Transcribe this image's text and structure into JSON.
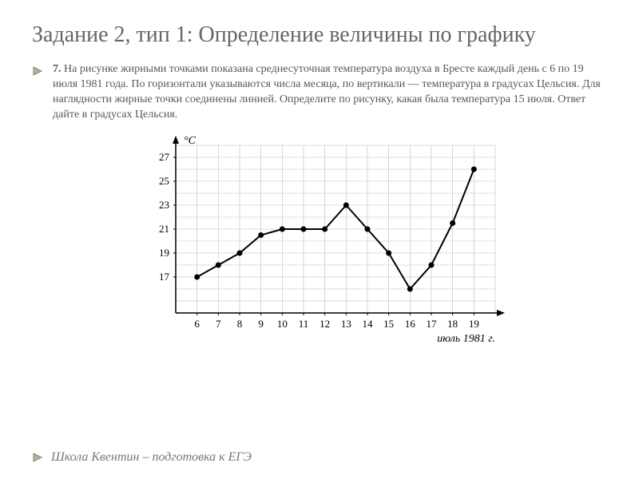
{
  "title": "Задание 2, тип 1: Определение величины по графику",
  "problem": {
    "number": "7.",
    "text": "На рисунке жирными точками показана среднесуточная температура воздуха в Бресте каждый день с 6 по 19 июля 1981 года. По горизонтали указываются числа месяца, по вертикали — температура в градусах Цельсия. Для наглядности жирные точки соединены линией. Определите по рисунку, какая была температура 15 июля. Ответ дайте в градусах Цельсия."
  },
  "chart": {
    "type": "line",
    "y_axis_label": "°C",
    "x_axis_caption": "июль 1981 г.",
    "x_values": [
      6,
      7,
      8,
      9,
      10,
      11,
      12,
      13,
      14,
      15,
      16,
      17,
      18,
      19
    ],
    "y_ticks": [
      17,
      19,
      21,
      23,
      25,
      27
    ],
    "data": [
      {
        "x": 6,
        "y": 17
      },
      {
        "x": 7,
        "y": 18
      },
      {
        "x": 8,
        "y": 19
      },
      {
        "x": 9,
        "y": 20.5
      },
      {
        "x": 10,
        "y": 21
      },
      {
        "x": 11,
        "y": 21
      },
      {
        "x": 12,
        "y": 21
      },
      {
        "x": 13,
        "y": 23
      },
      {
        "x": 14,
        "y": 21
      },
      {
        "x": 15,
        "y": 19
      },
      {
        "x": 16,
        "y": 16
      },
      {
        "x": 17,
        "y": 18
      },
      {
        "x": 18,
        "y": 21.5
      },
      {
        "x": 19,
        "y": 26
      }
    ],
    "ylim": [
      14,
      28
    ],
    "xlim": [
      5,
      20
    ],
    "colors": {
      "axis": "#000000",
      "grid": "#bdbdbd",
      "line": "#000000",
      "point": "#000000",
      "text": "#000000",
      "background": "#ffffff"
    },
    "line_width": 2,
    "point_radius": 3.5,
    "tick_fontsize": 13,
    "label_fontsize": 14
  },
  "footer": "Школа Квентин – подготовка к ЕГЭ",
  "bullet_colors": {
    "fill": "#a8b8a0",
    "stroke": "#7a8a72"
  }
}
